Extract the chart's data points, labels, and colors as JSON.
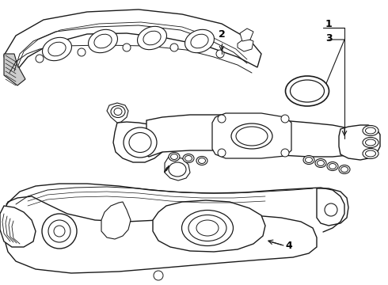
{
  "background_color": "#ffffff",
  "line_color": "#1a1a1a",
  "line_width": 1.0,
  "label_color": "#000000",
  "figsize": [
    4.9,
    3.6
  ],
  "dpi": 100,
  "xlim": [
    0,
    490
  ],
  "ylim": [
    0,
    360
  ]
}
